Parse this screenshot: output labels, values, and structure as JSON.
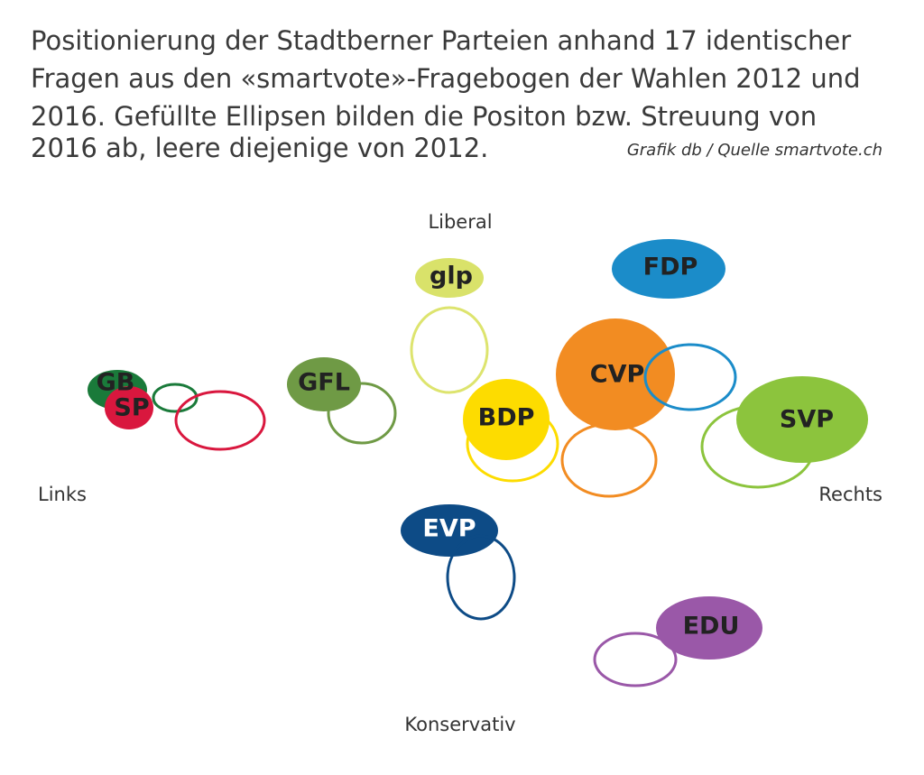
{
  "header": {
    "title_lines": [
      "Positionierung der Stadtberner Parteien anhand 17 identischer",
      "Fragen aus den «smartvote»-Fragebogen der Wahlen 2012 und",
      "2016. Gefüllte Ellipsen bilden die Positon bzw. Streuung von",
      "2016 ab, leere diejenige von 2012."
    ],
    "source": "Grafik db / Quelle smartvote.ch"
  },
  "axes": {
    "top": "Liberal",
    "bottom": "Konservativ",
    "left": "Links",
    "right": "Rechts"
  },
  "parties": [
    "GB",
    "SP",
    "GFL",
    "glp",
    "BDP",
    "CVP",
    "FDP",
    "SVP",
    "EVP",
    "EDU"
  ]
}
